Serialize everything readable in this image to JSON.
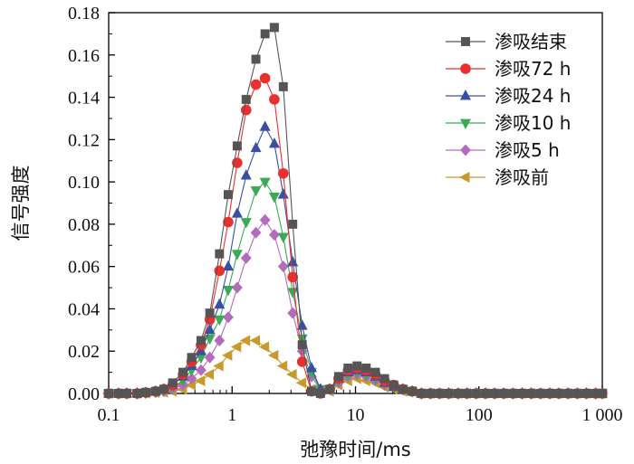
{
  "chart_data": {
    "type": "line",
    "xlabel": "弛豫时间/ms",
    "ylabel": "信号强度",
    "xscale": "log",
    "xlim": [
      0.1,
      1000
    ],
    "ylim": [
      0,
      0.18
    ],
    "x_ticks": [
      0.1,
      1,
      10,
      100,
      1000
    ],
    "x_tick_labels": [
      "0.1",
      "1",
      "10",
      "100",
      "1 000"
    ],
    "y_ticks": [
      0,
      0.02,
      0.04,
      0.06,
      0.08,
      0.1,
      0.12,
      0.14,
      0.16,
      0.18
    ],
    "y_tick_labels": [
      "0.00",
      "0.02",
      "0.04",
      "0.06",
      "0.08",
      "0.10",
      "0.12",
      "0.14",
      "0.16",
      "0.18"
    ],
    "grid": false,
    "legend_position": "top-right",
    "x": [
      0.1,
      0.12,
      0.14,
      0.17,
      0.2,
      0.24,
      0.28,
      0.33,
      0.4,
      0.47,
      0.56,
      0.66,
      0.79,
      0.93,
      1.1,
      1.3,
      1.56,
      1.85,
      2.2,
      2.6,
      3.1,
      3.7,
      4.4,
      5.2,
      6.2,
      7.3,
      8.7,
      10.3,
      12.2,
      14.5,
      17.2,
      20.4,
      24.2,
      28.8,
      34.2,
      40.5,
      48,
      57,
      68,
      80,
      95,
      113,
      134,
      159,
      189,
      224,
      266,
      316,
      375,
      445,
      528,
      627,
      744,
      883,
      1000
    ],
    "series": [
      {
        "name": "渗吸结束",
        "color": "#555555",
        "marker": "square",
        "values": [
          0,
          0,
          0,
          0,
          0.0005,
          0.001,
          0.002,
          0.005,
          0.01,
          0.017,
          0.025,
          0.038,
          0.066,
          0.094,
          0.117,
          0.139,
          0.158,
          0.17,
          0.173,
          0.145,
          0.08,
          0.023,
          0.001,
          0,
          0.002,
          0.008,
          0.012,
          0.013,
          0.012,
          0.01,
          0.007,
          0.004,
          0.002,
          0.001,
          0,
          0,
          0,
          0,
          0,
          0,
          0,
          0,
          0,
          0,
          0,
          0,
          0,
          0,
          0,
          0,
          0,
          0,
          0,
          0,
          0
        ]
      },
      {
        "name": "渗吸72 h",
        "color": "#e8312f",
        "marker": "circle",
        "values": [
          0,
          0,
          0,
          0,
          0.0004,
          0.001,
          0.002,
          0.004,
          0.009,
          0.015,
          0.023,
          0.035,
          0.058,
          0.081,
          0.109,
          0.134,
          0.146,
          0.149,
          0.139,
          0.104,
          0.055,
          0.015,
          0.001,
          0,
          0.002,
          0.007,
          0.011,
          0.012,
          0.011,
          0.009,
          0.006,
          0.004,
          0.002,
          0.001,
          0,
          0,
          0,
          0,
          0,
          0,
          0,
          0,
          0,
          0,
          0,
          0,
          0,
          0,
          0,
          0,
          0,
          0,
          0,
          0,
          0
        ]
      },
      {
        "name": "渗吸24 h",
        "color": "#3a4fa3",
        "marker": "triangle-up",
        "values": [
          0,
          0,
          0,
          0,
          0.0004,
          0.001,
          0.002,
          0.004,
          0.008,
          0.013,
          0.02,
          0.03,
          0.042,
          0.06,
          0.085,
          0.103,
          0.116,
          0.126,
          0.118,
          0.094,
          0.062,
          0.032,
          0.012,
          0.002,
          0.002,
          0.007,
          0.01,
          0.011,
          0.01,
          0.008,
          0.005,
          0.003,
          0.002,
          0.001,
          0,
          0,
          0,
          0,
          0,
          0,
          0,
          0,
          0,
          0,
          0,
          0,
          0,
          0,
          0,
          0,
          0,
          0,
          0,
          0,
          0
        ]
      },
      {
        "name": "渗吸10 h",
        "color": "#3aaa57",
        "marker": "triangle-down",
        "values": [
          0,
          0,
          0,
          0,
          0.0003,
          0.0008,
          0.0015,
          0.003,
          0.006,
          0.011,
          0.017,
          0.026,
          0.035,
          0.049,
          0.066,
          0.081,
          0.096,
          0.1,
          0.093,
          0.074,
          0.048,
          0.026,
          0.01,
          0.002,
          0.002,
          0.006,
          0.009,
          0.01,
          0.009,
          0.007,
          0.005,
          0.003,
          0.002,
          0.001,
          0,
          0,
          0,
          0,
          0,
          0,
          0,
          0,
          0,
          0,
          0,
          0,
          0,
          0,
          0,
          0,
          0,
          0,
          0,
          0,
          0
        ]
      },
      {
        "name": "渗吸5 h",
        "color": "#b36bbd",
        "marker": "diamond",
        "values": [
          0,
          0,
          0,
          0,
          0.0002,
          0.0006,
          0.001,
          0.002,
          0.004,
          0.007,
          0.011,
          0.017,
          0.025,
          0.036,
          0.05,
          0.064,
          0.076,
          0.082,
          0.075,
          0.06,
          0.038,
          0.02,
          0.008,
          0.002,
          0.002,
          0.005,
          0.008,
          0.009,
          0.008,
          0.006,
          0.004,
          0.003,
          0.002,
          0.001,
          0,
          0,
          0,
          0,
          0,
          0,
          0,
          0,
          0,
          0,
          0,
          0,
          0,
          0,
          0,
          0,
          0,
          0,
          0,
          0,
          0
        ]
      },
      {
        "name": "渗吸前",
        "color": "#c89a2c",
        "marker": "triangle-left",
        "values": [
          0,
          0,
          0,
          0,
          0.0001,
          0.0003,
          0.0006,
          0.001,
          0.002,
          0.004,
          0.006,
          0.009,
          0.013,
          0.018,
          0.022,
          0.025,
          0.025,
          0.022,
          0.018,
          0.013,
          0.009,
          0.005,
          0.002,
          0.001,
          0.001,
          0.004,
          0.006,
          0.007,
          0.006,
          0.005,
          0.003,
          0.002,
          0.001,
          0.001,
          0,
          0,
          0,
          0,
          0,
          0,
          0,
          0,
          0,
          0,
          0,
          0,
          0,
          0,
          0,
          0,
          0,
          0,
          0,
          0,
          0
        ]
      }
    ]
  }
}
